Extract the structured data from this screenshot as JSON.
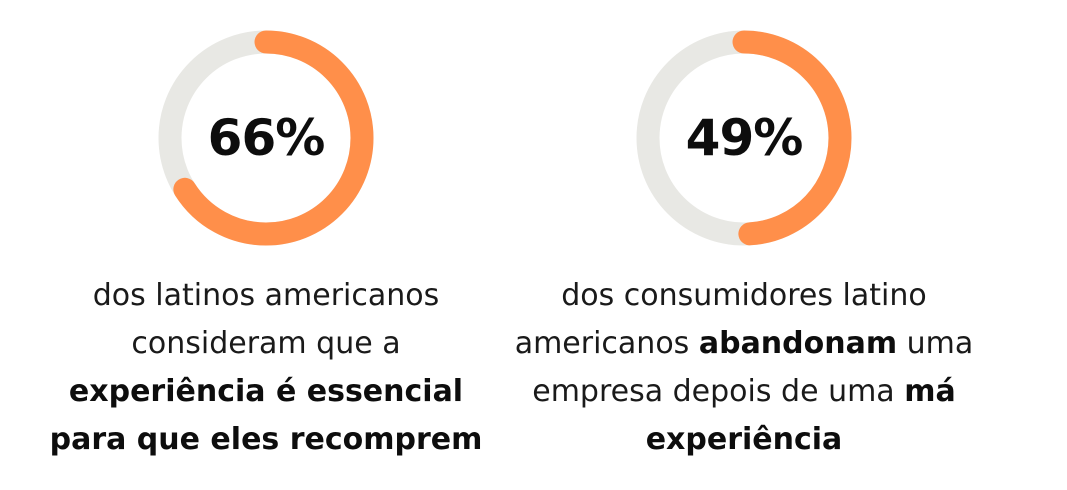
{
  "colors": {
    "ring_track": "#e8e8e4",
    "ring_fill": "#ff8f4a",
    "text": "#1a1a1a"
  },
  "chart_data": [
    {
      "type": "pie",
      "variant": "donut",
      "value_percent": 66,
      "label": "66%",
      "caption": [
        [
          {
            "text": "dos latinos americanos",
            "bold": false
          }
        ],
        [
          {
            "text": "consideram que a",
            "bold": false
          }
        ],
        [
          {
            "text": "experiência é essencial",
            "bold": true
          }
        ],
        [
          {
            "text": "para que eles recomprem",
            "bold": true
          }
        ]
      ]
    },
    {
      "type": "pie",
      "variant": "donut",
      "value_percent": 49,
      "label": "49%",
      "caption": [
        [
          {
            "text": "dos consumidores latino",
            "bold": false
          }
        ],
        [
          {
            "text": "americanos ",
            "bold": false
          },
          {
            "text": "abandonam",
            "bold": true
          },
          {
            "text": " uma",
            "bold": false
          }
        ],
        [
          {
            "text": "empresa depois de uma ",
            "bold": false
          },
          {
            "text": "má",
            "bold": true
          }
        ],
        [
          {
            "text": "experiência",
            "bold": true
          }
        ]
      ]
    }
  ]
}
